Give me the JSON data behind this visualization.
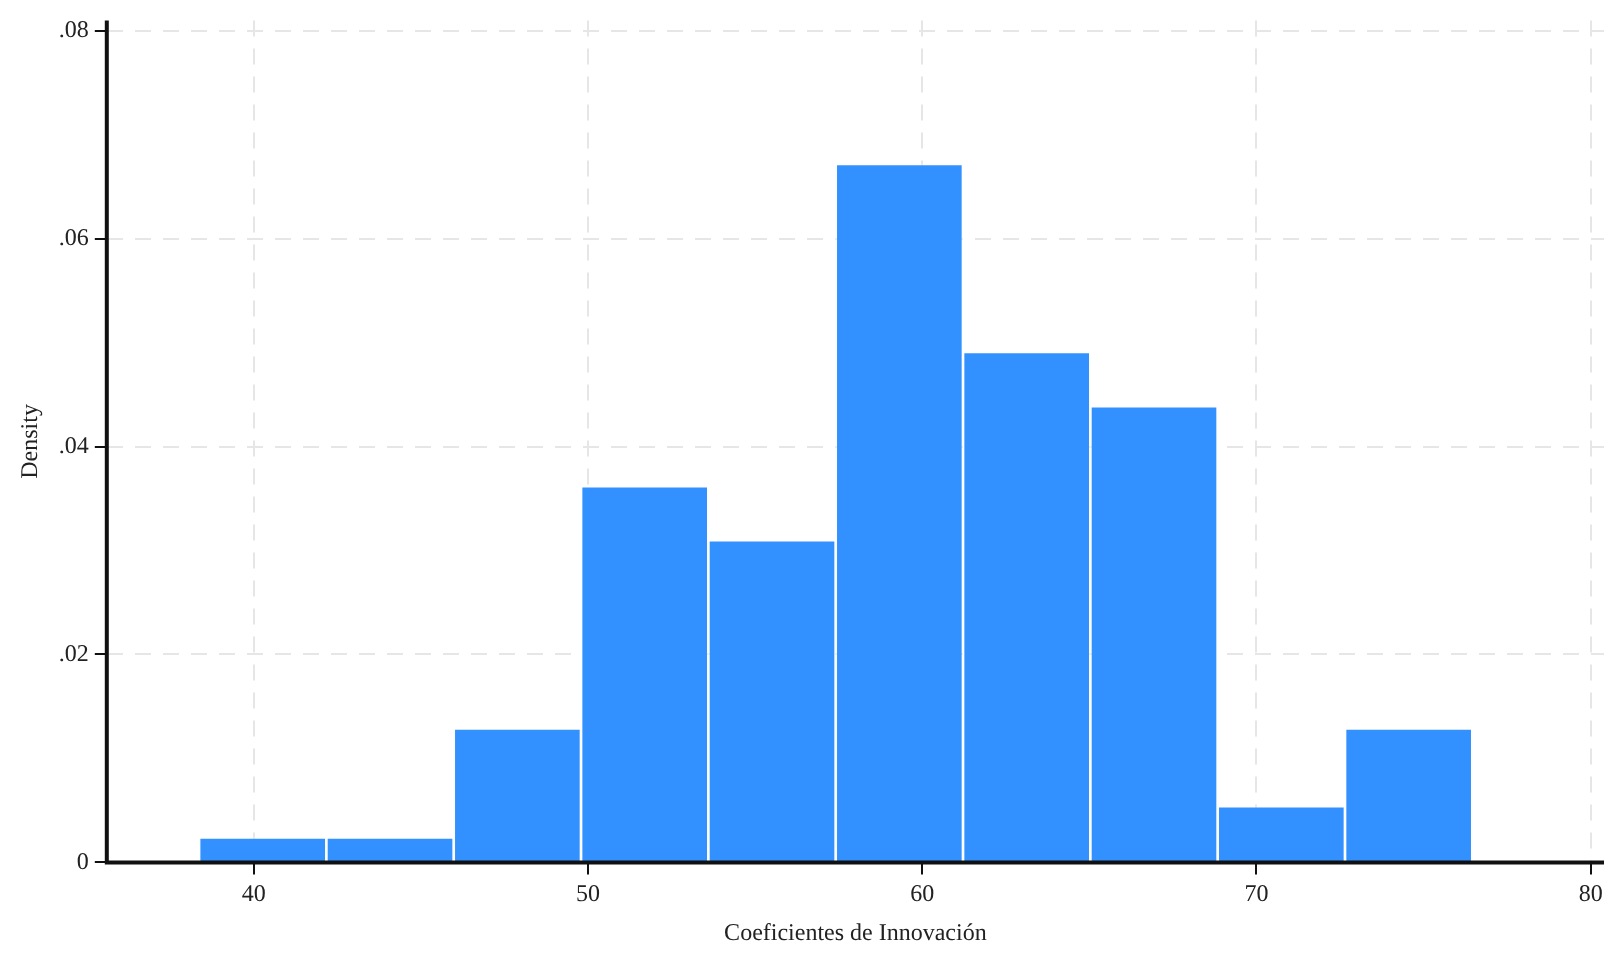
{
  "chart_data": {
    "type": "histogram",
    "xlabel": "Coeficientes de Innovación",
    "ylabel": "Density",
    "bins": [
      38.36,
      42.17,
      45.98,
      49.79,
      53.6,
      57.41,
      61.22,
      65.03,
      68.84,
      72.65,
      76.46
    ],
    "values": [
      0.0024,
      0.0024,
      0.0129,
      0.0362,
      0.031,
      0.0672,
      0.0491,
      0.0439,
      0.0054,
      0.0129
    ],
    "color": "#3391ff",
    "xlim": [
      35.6,
      80.4
    ],
    "xticks": [
      40,
      50,
      60,
      70,
      80
    ],
    "ylim": [
      0,
      0.081
    ],
    "yticks": [
      0,
      {
        "value": 0.02,
        "label": ".02"
      },
      {
        "value": 0.04,
        "label": ".04"
      },
      {
        "value": 0.06,
        "label": ".06"
      },
      {
        "value": 0.08,
        "label": ".08"
      }
    ],
    "grid": true
  }
}
